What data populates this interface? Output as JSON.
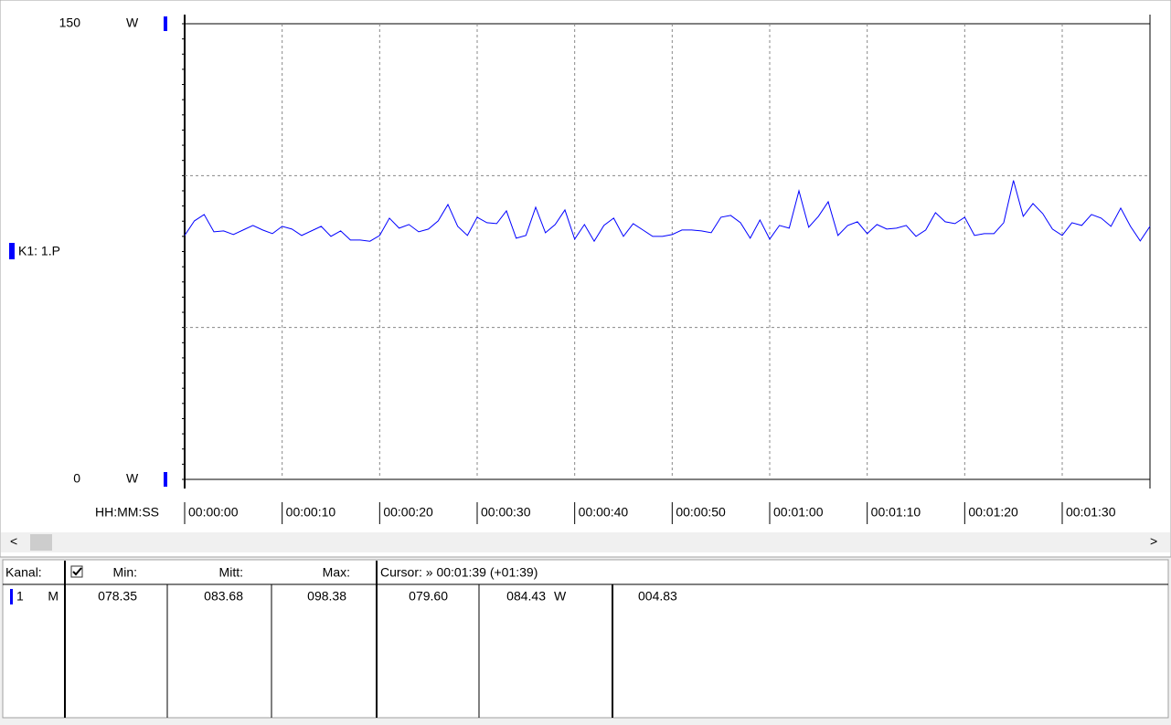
{
  "chart_data": {
    "type": "line",
    "x_label": "HH:MM:SS",
    "y_unit": "W",
    "series": [
      {
        "name": "K1: 1.P",
        "color": "#0000ff",
        "values": [
          80.3,
          85.1,
          87.2,
          81.5,
          81.8,
          80.6,
          82.1,
          83.6,
          82.1,
          80.9,
          83.3,
          82.4,
          80.3,
          81.8,
          83.3,
          80.0,
          81.8,
          78.8,
          78.8,
          78.4,
          80.3,
          86.0,
          82.7,
          83.9,
          81.5,
          82.4,
          85.1,
          90.5,
          83.3,
          80.3,
          86.3,
          84.5,
          84.2,
          88.4,
          79.4,
          80.3,
          89.6,
          81.2,
          83.9,
          88.7,
          79.1,
          83.9,
          78.4,
          83.6,
          86.0,
          80.0,
          84.2,
          82.1,
          80.0,
          80.0,
          80.6,
          82.1,
          82.1,
          81.8,
          81.2,
          86.3,
          86.9,
          84.5,
          79.4,
          85.4,
          79.1,
          83.6,
          82.7,
          95.0,
          83.0,
          86.6,
          91.4,
          80.3,
          83.6,
          84.8,
          80.9,
          83.9,
          82.4,
          82.7,
          83.6,
          80.0,
          82.1,
          87.8,
          84.8,
          84.2,
          86.3,
          80.3,
          80.9,
          80.9,
          84.5,
          98.4,
          86.6,
          90.8,
          87.5,
          82.4,
          80.3,
          84.5,
          83.6,
          87.2,
          86.0,
          83.3,
          89.3,
          83.3,
          78.5,
          83.3
        ]
      }
    ],
    "x": [
      0,
      1,
      2,
      3,
      4,
      5,
      6,
      7,
      8,
      9,
      10,
      11,
      12,
      13,
      14,
      15,
      16,
      17,
      18,
      19,
      20,
      21,
      22,
      23,
      24,
      25,
      26,
      27,
      28,
      29,
      30,
      31,
      32,
      33,
      34,
      35,
      36,
      37,
      38,
      39,
      40,
      41,
      42,
      43,
      44,
      45,
      46,
      47,
      48,
      49,
      50,
      51,
      52,
      53,
      54,
      55,
      56,
      57,
      58,
      59,
      60,
      61,
      62,
      63,
      64,
      65,
      66,
      67,
      68,
      69,
      70,
      71,
      72,
      73,
      74,
      75,
      76,
      77,
      78,
      79,
      80,
      81,
      82,
      83,
      84,
      85,
      86,
      87,
      88,
      89,
      90,
      91,
      92,
      93,
      94,
      95,
      96,
      97,
      98,
      99
    ],
    "xlim": [
      0,
      99
    ],
    "xticks": [
      {
        "value": 0,
        "label": "00:00:00"
      },
      {
        "value": 10,
        "label": "00:00:10"
      },
      {
        "value": 20,
        "label": "00:00:20"
      },
      {
        "value": 30,
        "label": "00:00:30"
      },
      {
        "value": 40,
        "label": "00:00:40"
      },
      {
        "value": 50,
        "label": "00:00:50"
      },
      {
        "value": 60,
        "label": "00:01:00"
      },
      {
        "value": 70,
        "label": "00:01:10"
      },
      {
        "value": 80,
        "label": "00:01:20"
      },
      {
        "value": 90,
        "label": "00:01:30"
      }
    ],
    "ylim": [
      0,
      150
    ],
    "yticks": [
      0,
      150
    ],
    "ygrid": [
      50,
      100
    ],
    "grid": true
  },
  "table": {
    "header": [
      "Kanal:",
      "Min:",
      "Mitt:",
      "Max:",
      "Cursor: » 00:01:39 (+01:39)"
    ],
    "row": [
      "1",
      "M",
      "078.35",
      "083.68",
      "098.38",
      "079.60",
      "084.43",
      "W",
      "004.83"
    ]
  }
}
